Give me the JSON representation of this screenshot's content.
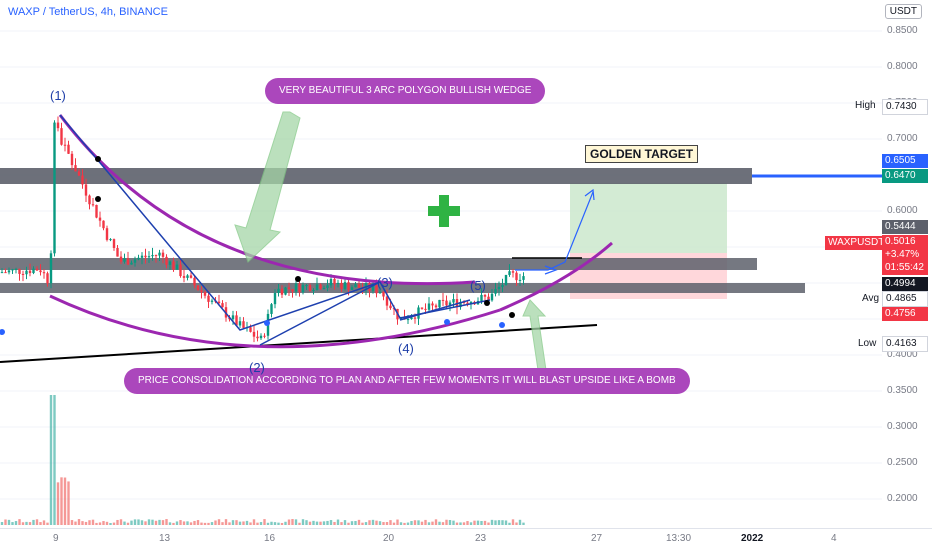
{
  "header": {
    "title": "WAXP / TetherUS, 4h, BINANCE",
    "currency": "USDT"
  },
  "price_axis": {
    "ticks": [
      "0.8500",
      "0.8000",
      "0.7500",
      "0.7000",
      "0.6500",
      "0.6000",
      "0.5500",
      "0.5000",
      "0.4500",
      "0.4000",
      "0.3500",
      "0.3000",
      "0.2500",
      "0.2000"
    ],
    "high": {
      "label": "High",
      "value": "0.7430"
    },
    "low": {
      "label": "Low",
      "value": "0.4163"
    },
    "avg": {
      "label": "Avg",
      "value": "0.4865"
    },
    "markers": [
      {
        "value": "0.6505",
        "color": "#2962ff"
      },
      {
        "value": "0.6470",
        "color": "#089981"
      },
      {
        "value": "0.5444",
        "color": "#5d606b"
      },
      {
        "value": "0.4994",
        "color": "#131722"
      },
      {
        "value": "0.4756",
        "color": "#f23645"
      }
    ],
    "symbol": {
      "name": "WAXPUSDT",
      "price": "0.5016",
      "change": "+3.47%",
      "countdown": "01:55:42",
      "color": "#f23645"
    }
  },
  "time_axis": {
    "ticks": [
      "9",
      "13",
      "16",
      "20",
      "23",
      "27",
      "13:30",
      "2022",
      "4"
    ]
  },
  "annotations": {
    "wedge_note": "VERY BEAUTIFUL 3 ARC POLYGON BULLISH WEDGE",
    "consolidation_note": "PRICE CONSOLIDATION ACCORDING TO PLAN AND AFTER FEW MOMENTS IT WILL BLAST UPSIDE LIKE A BOMB",
    "target": "GOLDEN TARGET",
    "waves": [
      "(1)",
      "(2)",
      "(3)",
      "(4)",
      "(5)"
    ]
  },
  "colors": {
    "up": "#089981",
    "down": "#f23645",
    "arc": "#9c27b0",
    "bubble": "#ab47bc",
    "zone": "#5d606b"
  }
}
